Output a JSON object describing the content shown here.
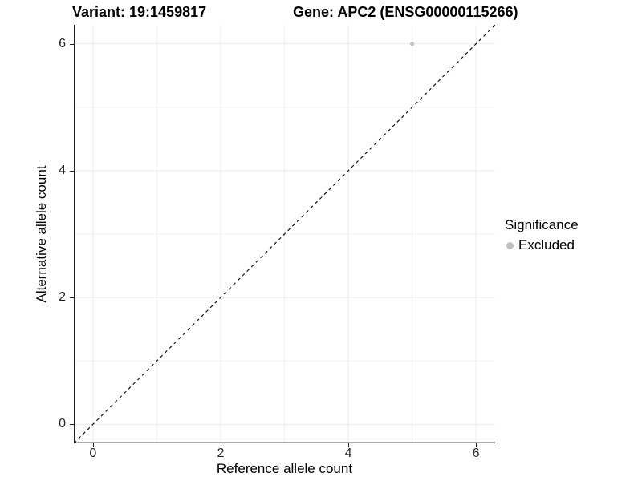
{
  "titles": {
    "left": "Variant: 19:1459817",
    "right": "Gene: APC2 (ENSG00000115266)"
  },
  "chart_data": {
    "type": "scatter",
    "xlabel": "Reference allele count",
    "ylabel": "Alternative allele count",
    "xlim": [
      -0.3,
      6.3
    ],
    "ylim": [
      -0.3,
      6.3
    ],
    "major_ticks": [
      0,
      2,
      4,
      6
    ],
    "minor_ticks": [
      1,
      3,
      5
    ],
    "grid": true,
    "points": [
      {
        "x": 5,
        "y": 6,
        "series": "Excluded"
      }
    ],
    "reference_line": {
      "type": "identity",
      "style": "dashed",
      "x1": -0.3,
      "y1": -0.3,
      "x2": 6.3,
      "y2": 6.3
    },
    "legend": {
      "title": "Significance",
      "position": "right",
      "items": [
        {
          "label": "Excluded",
          "color": "#c1c1c1"
        }
      ]
    },
    "colors": {
      "point": "#c1c1c1",
      "grid_major": "#ebebeb",
      "grid_minor": "#f2f2f2",
      "axis_line": "#1f1f1f",
      "reference_line": "#000000",
      "tick_text": "#262626"
    }
  }
}
